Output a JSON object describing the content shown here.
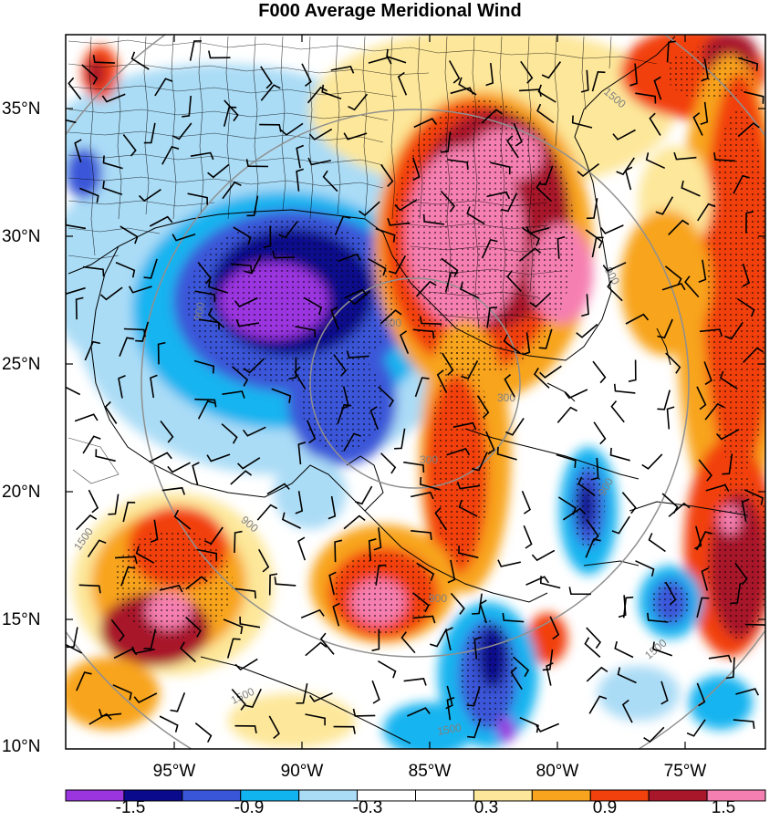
{
  "title": "F000 Average Meridional Wind",
  "latitude_labels": [
    "35°N",
    "30°N",
    "25°N",
    "20°N",
    "15°N",
    "10°N"
  ],
  "longitude_labels": [
    "95°W",
    "90°W",
    "85°W",
    "80°W",
    "75°W"
  ],
  "range_ring_labels": [
    "300",
    "300",
    "300",
    "900",
    "900",
    "900",
    "900",
    "900",
    "1500",
    "1500",
    "1500",
    "1500",
    "1500"
  ],
  "colorbar": {
    "labels": [
      "-1.5",
      "-0.9",
      "-0.3",
      "0.3",
      "0.9",
      "1.5"
    ],
    "colors": [
      "#9b35e0",
      "#0a0a8c",
      "#3a56d8",
      "#12b4f0",
      "#aadcf6",
      "#ffffff",
      "#ffffff",
      "#fde79a",
      "#f8a41e",
      "#f2410c",
      "#a8172a",
      "#f57fb0"
    ]
  },
  "map": {
    "lat_range": [
      10,
      38
    ],
    "lon_range": [
      -99,
      -71
    ],
    "features": [
      "US county borders",
      "Gulf coastline",
      "Florida",
      "Cuba",
      "Central America",
      "Caribbean islands"
    ]
  },
  "colors": {
    "strong_negative": "#9b35e0",
    "negative": "#0a0a8c",
    "positive": "#f2410c",
    "strong_positive": "#f57fb0",
    "range_ring": "#909090"
  }
}
